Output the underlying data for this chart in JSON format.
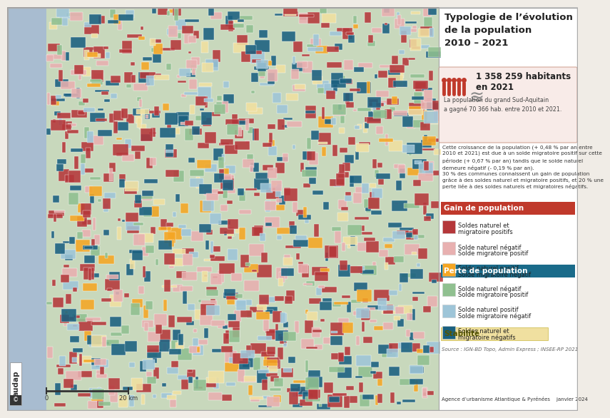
{
  "title_line1": "Typologie de l’évolution",
  "title_line2": "de la population",
  "title_line3": "2010 – 2021",
  "stat_number": "1 358 259 habitants",
  "stat_year": "en 2021",
  "stat_desc": "La population du grand Sud-Aquitain\na gagné 70 366 hab. entre 2010 et 2021.",
  "body_text": "Cette croissance de la population (+ 0,48 % par an entre\n2010 et 2021) est due à un solde migratoire positif sur cette\npériode (+ 0,67 % par an) tandis que le solde naturel\ndemeure négatif (- 0,19 % par an).\n30 % des communes connaissent un gain de population\ngrâce à des soldes naturel et migratoire positifs, et 20 % une\nperte liée à des soldes naturels et migratoires négatifs.",
  "gain_title": "Gain de population",
  "gain_items": [
    {
      "color": "#b5373a",
      "label1": "Soldes naturel et",
      "label2": "migratoire positifs"
    },
    {
      "color": "#e8b0b0",
      "label1": "Solde naturel négatif",
      "label2": "Solde migratoire positif"
    },
    {
      "color": "#f5a623",
      "label1": "Solde naturel positif",
      "label2": "Solde migratoire négatif"
    }
  ],
  "perte_title": "Perte de population",
  "perte_items": [
    {
      "color": "#90c090",
      "label1": "Solde naturel négatif",
      "label2": "Solde migratoire positif"
    },
    {
      "color": "#9ec5d8",
      "label1": "Solde naturel positif",
      "label2": "Solde migratoire négatif"
    },
    {
      "color": "#1a6080",
      "label1": "Soldes naturel et",
      "label2": "migratoire négatifs"
    }
  ],
  "stabilite_title": "Stabilité",
  "source_text": "Source : IGN-BD Topo, Admin Express ; INSEE-RP 2021",
  "agency_text": "Agence d’urbanisme Atlantique & Pyrénées    janvier 2024",
  "background_color": "#f0ece6",
  "map_bg": "#c8d8bc",
  "ocean_color": "#a8bcd0",
  "panel_bg": "#ffffff",
  "gain_header_color": "#c0392b",
  "perte_header_color": "#1a6b8a",
  "stabilite_header_color": "#f0e0a0",
  "stat_box_color": "#f8ebe8",
  "stat_box_border": "#d4a898",
  "icon_color": "#c0392b"
}
